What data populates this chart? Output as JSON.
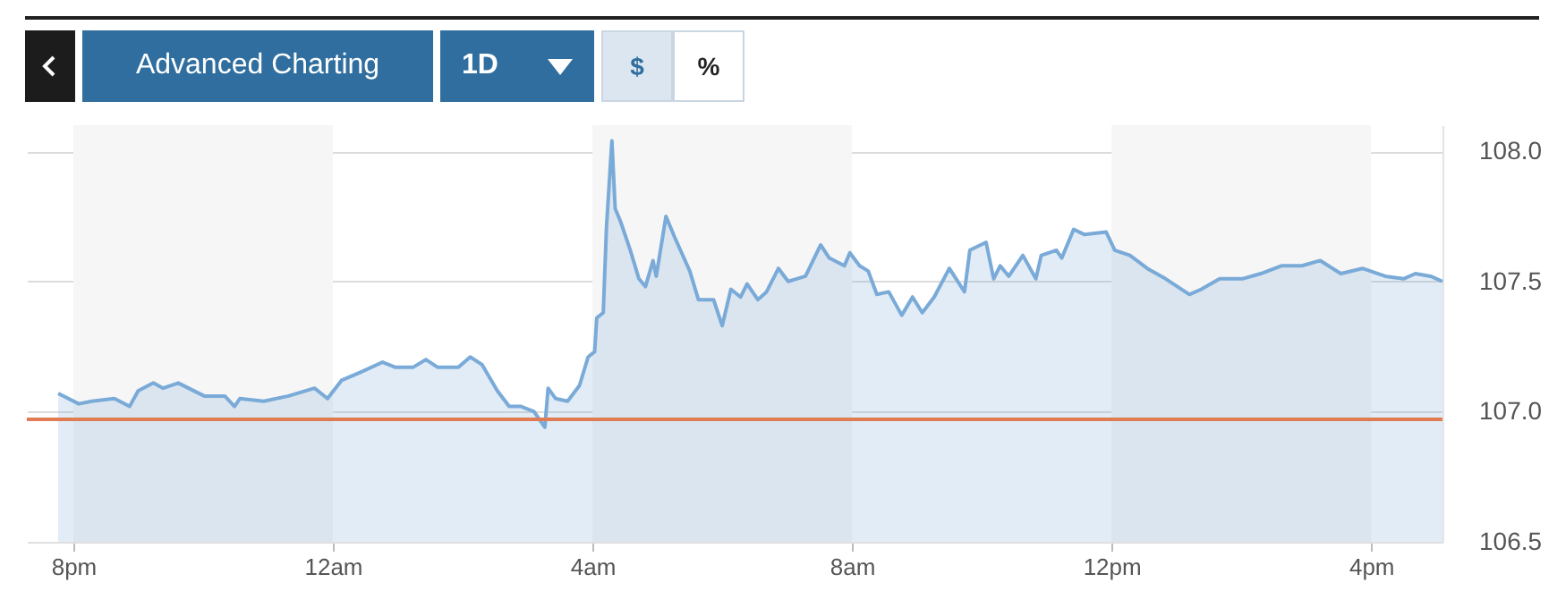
{
  "chart_data": {
    "type": "area",
    "x": [
      "--01-01T19:46",
      "--01-01T20:05",
      "--01-01T20:17",
      "--01-01T20:38",
      "--01-01T20:52",
      "--01-01T21:00",
      "--01-01T21:14",
      "--01-01T21:23",
      "--01-01T21:37",
      "--01-01T22:01",
      "--01-01T22:20",
      "--01-01T22:29",
      "--01-01T22:34",
      "--01-01T22:56",
      "--01-01T23:19",
      "--01-01T23:43",
      "--01-01T23:55",
      "--01-02T00:08",
      "--01-02T00:25",
      "--01-02T00:46",
      "--01-02T00:58",
      "--01-02T01:14",
      "--01-02T01:26",
      "--01-02T01:37",
      "--01-02T01:56",
      "--01-02T02:07",
      "--01-02T02:18",
      "--01-02T02:32",
      "--01-02T02:43",
      "--01-02T02:54",
      "--01-02T03:06",
      "--01-02T03:16",
      "--01-02T03:19",
      "--01-02T03:26",
      "--01-02T03:37",
      "--01-02T03:48",
      "--01-02T03:56",
      "--01-02T04:02",
      "--01-02T04:04",
      "--01-02T04:10",
      "--01-02T04:13",
      "--01-02T04:18",
      "--01-02T04:21",
      "--01-02T04:26",
      "--01-02T04:35",
      "--01-02T04:43",
      "--01-02T04:49",
      "--01-02T04:56",
      "--01-02T04:59",
      "--01-02T05:08",
      "--01-02T05:16",
      "--01-02T05:30",
      "--01-02T05:38",
      "--01-02T05:52",
      "--01-02T06:00",
      "--01-02T06:08",
      "--01-02T06:17",
      "--01-02T06:23",
      "--01-02T06:33",
      "--01-02T06:41",
      "--01-02T06:52",
      "--01-02T07:01",
      "--01-02T07:09",
      "--01-02T07:17",
      "--01-02T07:31",
      "--01-02T07:39",
      "--01-02T07:53",
      "--01-02T07:58",
      "--01-02T08:07",
      "--01-02T08:15",
      "--01-02T08:23",
      "--01-02T08:34",
      "--01-02T08:46",
      "--01-02T08:56",
      "--01-02T09:05",
      "--01-02T09:16",
      "--01-02T09:30",
      "--01-02T09:44",
      "--01-02T09:49",
      "--01-02T10:04",
      "--01-02T10:11",
      "--01-02T10:17",
      "--01-02T10:25",
      "--01-02T10:38",
      "--01-02T10:50",
      "--01-02T10:55",
      "--01-02T11:09",
      "--01-02T11:14",
      "--01-02T11:25",
      "--01-02T11:35",
      "--01-02T11:55",
      "--01-02T12:03",
      "--01-02T12:17",
      "--01-02T12:33",
      "--01-02T12:50",
      "--01-02T13:12",
      "--01-02T13:23",
      "--01-02T13:40",
      "--01-02T14:01",
      "--01-02T14:18",
      "--01-02T14:37",
      "--01-02T14:56",
      "--01-02T15:13",
      "--01-02T15:32",
      "--01-02T15:52",
      "--01-02T16:13",
      "--01-02T16:30",
      "--01-02T16:41",
      "--01-02T16:55",
      "--01-02T17:06"
    ],
    "series": [
      {
        "color": "#7aaad8",
        "values": [
          107.07,
          107.03,
          107.04,
          107.05,
          107.02,
          107.08,
          107.11,
          107.09,
          107.11,
          107.06,
          107.06,
          107.02,
          107.05,
          107.04,
          107.06,
          107.09,
          107.05,
          107.12,
          107.15,
          107.19,
          107.17,
          107.17,
          107.2,
          107.17,
          107.17,
          107.21,
          107.18,
          107.08,
          107.02,
          107.02,
          107.0,
          106.94,
          107.09,
          107.05,
          107.04,
          107.1,
          107.21,
          107.23,
          107.36,
          107.38,
          107.71,
          108.04,
          107.78,
          107.73,
          107.62,
          107.51,
          107.48,
          107.58,
          107.52,
          107.75,
          107.67,
          107.54,
          107.43,
          107.43,
          107.33,
          107.47,
          107.44,
          107.49,
          107.43,
          107.46,
          107.55,
          107.5,
          107.51,
          107.52,
          107.64,
          107.59,
          107.56,
          107.61,
          107.56,
          107.54,
          107.45,
          107.46,
          107.37,
          107.44,
          107.38,
          107.44,
          107.55,
          107.46,
          107.62,
          107.65,
          107.51,
          107.56,
          107.52,
          107.6,
          107.51,
          107.6,
          107.62,
          107.59,
          107.7,
          107.68,
          107.69,
          107.62,
          107.6,
          107.55,
          107.51,
          107.45,
          107.47,
          107.51,
          107.51,
          107.53,
          107.56,
          107.56,
          107.58,
          107.53,
          107.55,
          107.52,
          107.51,
          107.53,
          107.52,
          107.5
        ]
      }
    ],
    "xlim": [
      "--01-01T19:17",
      "--01-02T17:06"
    ],
    "xticks": [
      {
        "value": "--01-01T20:00",
        "label": "8pm"
      },
      {
        "value": "--01-02T00:00",
        "label": "12am"
      },
      {
        "value": "--01-02T04:00",
        "label": "4am"
      },
      {
        "value": "--01-02T08:00",
        "label": "8am"
      },
      {
        "value": "--01-02T12:00",
        "label": "12pm"
      },
      {
        "value": "--01-02T16:00",
        "label": "4pm"
      }
    ],
    "ylim": [
      106.5,
      108.1
    ],
    "yticks": [
      {
        "value": 106.5,
        "label": "106.5"
      },
      {
        "value": 107,
        "label": "107.0"
      },
      {
        "value": 107.5,
        "label": "107.5"
      },
      {
        "value": 108,
        "label": "108.0"
      }
    ],
    "grid": "y",
    "ref_lines": [
      {
        "axis": "y",
        "value": 106.97,
        "color": "#e07b53"
      }
    ],
    "bands": [
      {
        "axis": "x",
        "from": "--01-01T20:00",
        "to": "--01-02T00:00",
        "color": "#f6f6f6"
      },
      {
        "axis": "x",
        "from": "--01-02T04:00",
        "to": "--01-02T08:00",
        "color": "#f6f6f6"
      },
      {
        "axis": "x",
        "from": "--01-02T12:00",
        "to": "--01-02T16:00",
        "color": "#f6f6f6"
      }
    ],
    "annotations": [
      "Advanced Charting",
      "1D",
      "$",
      "%"
    ]
  }
}
